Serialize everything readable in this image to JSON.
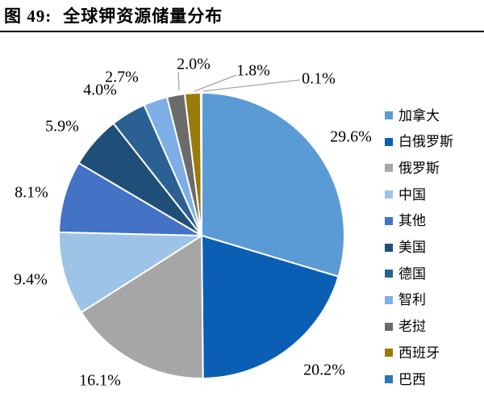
{
  "figure": {
    "label": "图 49:",
    "title": "全球钾资源储量分布"
  },
  "chart_data": {
    "type": "pie",
    "title": "全球钾资源储量分布",
    "start_angle_deg": 0,
    "direction": "clockwise",
    "legend_position": "right",
    "unit": "%",
    "categories": [
      "加拿大",
      "白俄罗斯",
      "俄罗斯",
      "中国",
      "其他",
      "美国",
      "德国",
      "智利",
      "老挝",
      "西班牙",
      "巴西"
    ],
    "values": [
      29.6,
      20.2,
      16.1,
      9.4,
      8.1,
      5.9,
      4.0,
      2.7,
      2.0,
      1.8,
      0.1
    ],
    "labels": [
      "29.6%",
      "20.2%",
      "16.1%",
      "9.4%",
      "8.1%",
      "5.9%",
      "4.0%",
      "2.7%",
      "2.0%",
      "1.8%",
      "0.1%"
    ],
    "colors": [
      "#5B9BD5",
      "#0A5FB4",
      "#A6A6A6",
      "#9DC3E6",
      "#4472C4",
      "#1F4E79",
      "#2B6094",
      "#7DAFE6",
      "#6B6B6B",
      "#9A7A0B",
      "#2E75B6"
    ]
  },
  "style": {
    "background": "#FFFFFF",
    "title_color": "#000000",
    "title_rule_color": "#000000",
    "label_color": "#000000",
    "leader_line_color": "#A6A6A6",
    "slice_border_color": "#FFFFFF"
  }
}
